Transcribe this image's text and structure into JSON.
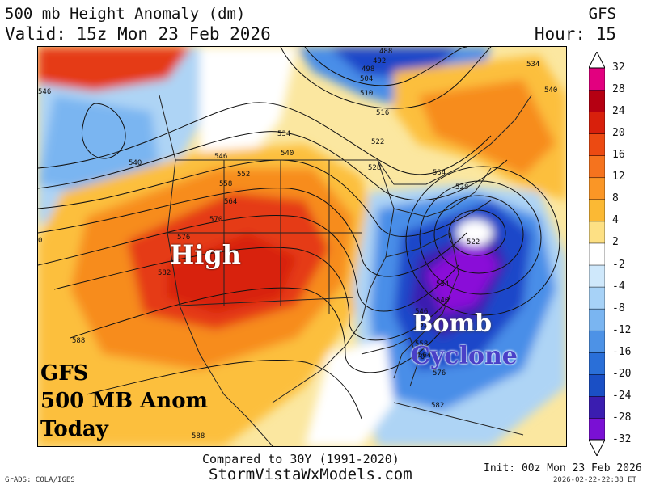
{
  "header": {
    "title": "500 mb Height Anomaly (dm)",
    "valid": "Valid: 15z Mon 23 Feb 2026",
    "model": "GFS",
    "hour": "Hour: 15"
  },
  "map": {
    "annotations": {
      "high": "High",
      "bomb_line1": "Bomb",
      "bomb_line2": "Cyclone",
      "gfs_line1": "GFS",
      "gfs_line2": "500 MB Anom",
      "gfs_line3": "Today"
    },
    "contour_labels": [
      "488",
      "492",
      "498",
      "504",
      "510",
      "516",
      "522",
      "528",
      "534",
      "540",
      "546",
      "552",
      "558",
      "564",
      "570",
      "576",
      "582",
      "588",
      "534",
      "540",
      "546",
      "528",
      "522",
      "534",
      "540",
      "546",
      "552",
      "558",
      "564",
      "570",
      "576",
      "588",
      "582",
      "0",
      "540",
      "534"
    ],
    "colors": {
      "strong_positive": "#e53a12",
      "positive": "#f78c1e",
      "weak_positive": "#fcbf3e",
      "neutral": "#ffffff",
      "weak_negative": "#aed4f5",
      "negative": "#4a8ee8",
      "strong_negative": "#1f47c9",
      "extreme_negative": "#8a10d8"
    }
  },
  "colorbar": {
    "labels": [
      "32",
      "28",
      "24",
      "20",
      "16",
      "12",
      "8",
      "4",
      "2",
      "-2",
      "-4",
      "-8",
      "-12",
      "-16",
      "-20",
      "-24",
      "-28",
      "-32"
    ],
    "colors": [
      "#e2007f",
      "#b50012",
      "#d8200c",
      "#ec4a12",
      "#f5731e",
      "#fa9626",
      "#fbb934",
      "#fde084",
      "#ffffff",
      "#cfe8fb",
      "#a7d2f7",
      "#7ab5f1",
      "#4d92e6",
      "#2a6fd8",
      "#1a4fc5",
      "#3a1db0",
      "#7a10d4"
    ]
  },
  "footer": {
    "compared": "Compared to 30Y (1991-2020)",
    "site": "StormVistaWxModels.com",
    "init": "Init: 00z Mon 23 Feb 2026",
    "stamp": "2026-02-22-22:38 ET",
    "grads": "GrADS: COLA/IGES"
  }
}
